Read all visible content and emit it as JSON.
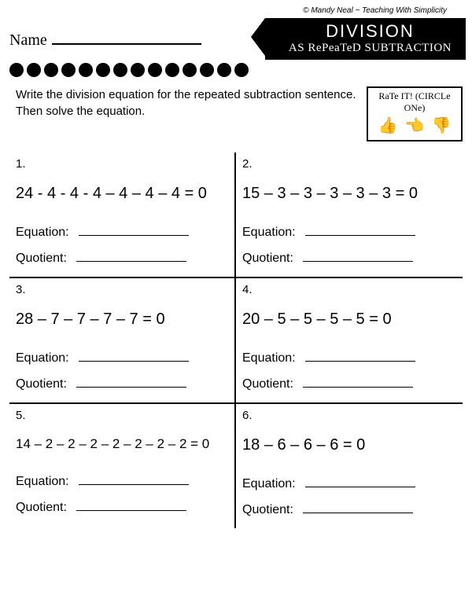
{
  "copyright": "© Mandy Neal ~ Teaching With Simplicity",
  "name_label": "Name",
  "title_main": "DIVISION",
  "title_sub": "AS RePeaTeD SUBTRACTION",
  "dot_count": 14,
  "instruction": "Write the division equation for the repeated subtraction sentence. Then solve the equation.",
  "rate_label": "RaTe IT! (CIRCLe ONe)",
  "equation_label": "Equation:",
  "quotient_label": "Quotient:",
  "thumbs": [
    "👍",
    "👈",
    "👎"
  ],
  "problems": [
    {
      "num": "1.",
      "expr": "24 - 4 - 4 - 4 – 4 – 4 – 4 = 0"
    },
    {
      "num": "2.",
      "expr": "15 – 3 – 3 – 3 – 3 – 3 = 0"
    },
    {
      "num": "3.",
      "expr": "28 – 7 – 7 – 7 – 7 = 0"
    },
    {
      "num": "4.",
      "expr": "20 – 5 – 5 – 5 – 5 = 0"
    },
    {
      "num": "5.",
      "expr": "14 – 2 – 2 – 2 – 2 – 2 – 2 – 2 = 0"
    },
    {
      "num": "6.",
      "expr": "18 – 6 – 6 – 6 = 0"
    }
  ]
}
